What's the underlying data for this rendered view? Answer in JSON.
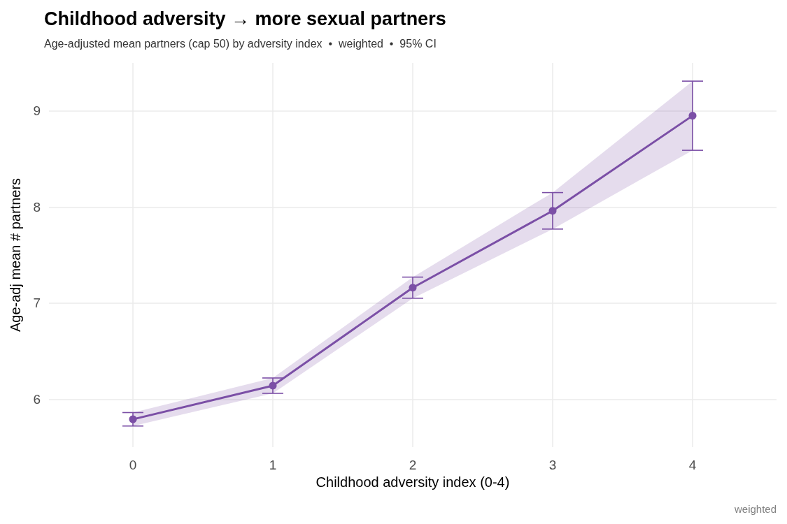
{
  "chart_data": {
    "type": "line",
    "title": "Childhood adversity → more sexual partners",
    "subtitle": "Age-adjusted mean partners (cap 50) by adversity index  •  weighted  •  95% CI",
    "xlabel": "Childhood adversity index (0-4)",
    "ylabel": "Age-adj mean # partners",
    "annotations": [
      "weighted"
    ],
    "x": [
      0,
      1,
      2,
      3,
      4
    ],
    "series": [
      {
        "color": "#7b4fa6",
        "values": [
          5.79,
          6.14,
          7.16,
          7.96,
          8.95
        ],
        "errors": [
          [
            5.72,
            5.86
          ],
          [
            6.06,
            6.22
          ],
          [
            7.05,
            7.27
          ],
          [
            7.77,
            8.15
          ],
          [
            8.59,
            9.31
          ]
        ],
        "lower": [
          5.72,
          6.06,
          7.05,
          7.77,
          8.59
        ],
        "upper": [
          5.86,
          6.22,
          7.27,
          8.15,
          9.31
        ]
      }
    ],
    "xlim": [
      -0.6,
      4.6
    ],
    "xticks": [
      0,
      1,
      2,
      3,
      4
    ],
    "ylim": [
      5.5,
      9.5
    ],
    "yticks": [
      6,
      7,
      8,
      9
    ],
    "grid": true,
    "marker": "circle",
    "line_style": "solid"
  }
}
